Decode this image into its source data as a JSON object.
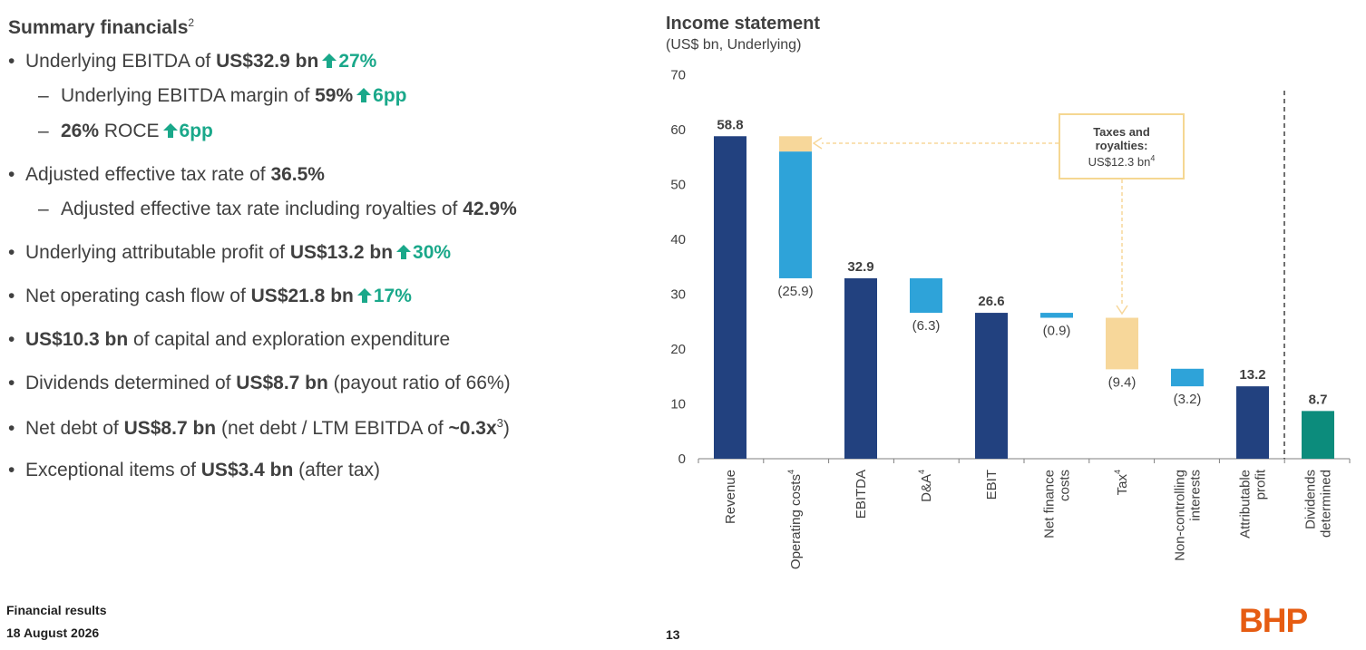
{
  "left": {
    "title": "Summary financials",
    "title_sup": "2",
    "bullets": [
      {
        "pre": "Underlying EBITDA of ",
        "bold": "US$32.9 bn",
        "change": "27%"
      },
      {
        "pre": "Underlying EBITDA margin of ",
        "bold": "59%",
        "change": "6pp"
      },
      {
        "bold": "26%",
        "post": " ROCE",
        "change": "6pp"
      },
      {
        "pre": "Adjusted effective tax rate of ",
        "bold": "36.5%"
      },
      {
        "pre": "Adjusted effective tax rate including royalties of ",
        "bold": "42.9%"
      },
      {
        "pre": "Underlying attributable profit of ",
        "bold": "US$13.2 bn",
        "change": "30%"
      },
      {
        "pre": "Net operating cash flow of ",
        "bold": "US$21.8 bn",
        "change": "17%"
      },
      {
        "bold": "US$10.3 bn",
        "post": " of capital and exploration expenditure"
      },
      {
        "pre": "Dividends determined of ",
        "bold": "US$8.7 bn",
        "post": " (payout ratio of 66%)"
      },
      {
        "pre": "Net debt of ",
        "bold": "US$8.7 bn",
        "post": " (net debt / LTM EBITDA of ",
        "bold2": "~0.3x",
        "sup": "3",
        "post2": ")"
      },
      {
        "pre": "Exceptional items of ",
        "bold": "US$3.4 bn",
        "post": " (after tax)"
      }
    ]
  },
  "footer": {
    "line1": "Financial results",
    "line2": "18 August 2026",
    "page": "13"
  },
  "logo": "BHP",
  "colors": {
    "navy": "#22417f",
    "light_blue": "#2ea3d9",
    "tan": "#f7d79a",
    "teal": "#0c8c7c",
    "green": "#1aa88a",
    "brand": "#e65c12"
  },
  "callout": {
    "title1": "Taxes and",
    "title2": "royalties:",
    "value": "US$12.3 bn",
    "sup": "4"
  },
  "chart_data": {
    "type": "bar",
    "subtype": "waterfall",
    "title": "Income statement",
    "subtitle": "(US$ bn, Underlying)",
    "ylim": [
      0,
      70
    ],
    "yticks": [
      0,
      10,
      20,
      30,
      40,
      50,
      60,
      70
    ],
    "grid": false,
    "bars": [
      {
        "category": "Revenue",
        "start": 0,
        "end": 58.8,
        "label": "58.8",
        "kind": "total"
      },
      {
        "category": "Operating costs",
        "sup": "4",
        "start": 58.8,
        "end": 32.9,
        "label": "(25.9)",
        "kind": "decrease",
        "royalty_portion": 2.8
      },
      {
        "category": "EBITDA",
        "start": 0,
        "end": 32.9,
        "label": "32.9",
        "kind": "total"
      },
      {
        "category": "D&A",
        "sup": "4",
        "start": 32.9,
        "end": 26.6,
        "label": "(6.3)",
        "kind": "decrease"
      },
      {
        "category": "EBIT",
        "start": 0,
        "end": 26.6,
        "label": "26.6",
        "kind": "total"
      },
      {
        "category": "Net finance costs",
        "start": 26.6,
        "end": 25.7,
        "label": "(0.9)",
        "kind": "decrease"
      },
      {
        "category": "Tax",
        "sup": "4",
        "start": 25.7,
        "end": 16.3,
        "label": "(9.4)",
        "kind": "tax"
      },
      {
        "category": "Non-controlling interests",
        "start": 16.4,
        "end": 13.2,
        "label": "(3.2)",
        "kind": "decrease"
      },
      {
        "category": "Attributable profit",
        "start": 0,
        "end": 13.2,
        "label": "13.2",
        "kind": "total"
      },
      {
        "category": "Dividends determined",
        "start": 0,
        "end": 8.7,
        "label": "8.7",
        "kind": "dividend"
      }
    ]
  }
}
